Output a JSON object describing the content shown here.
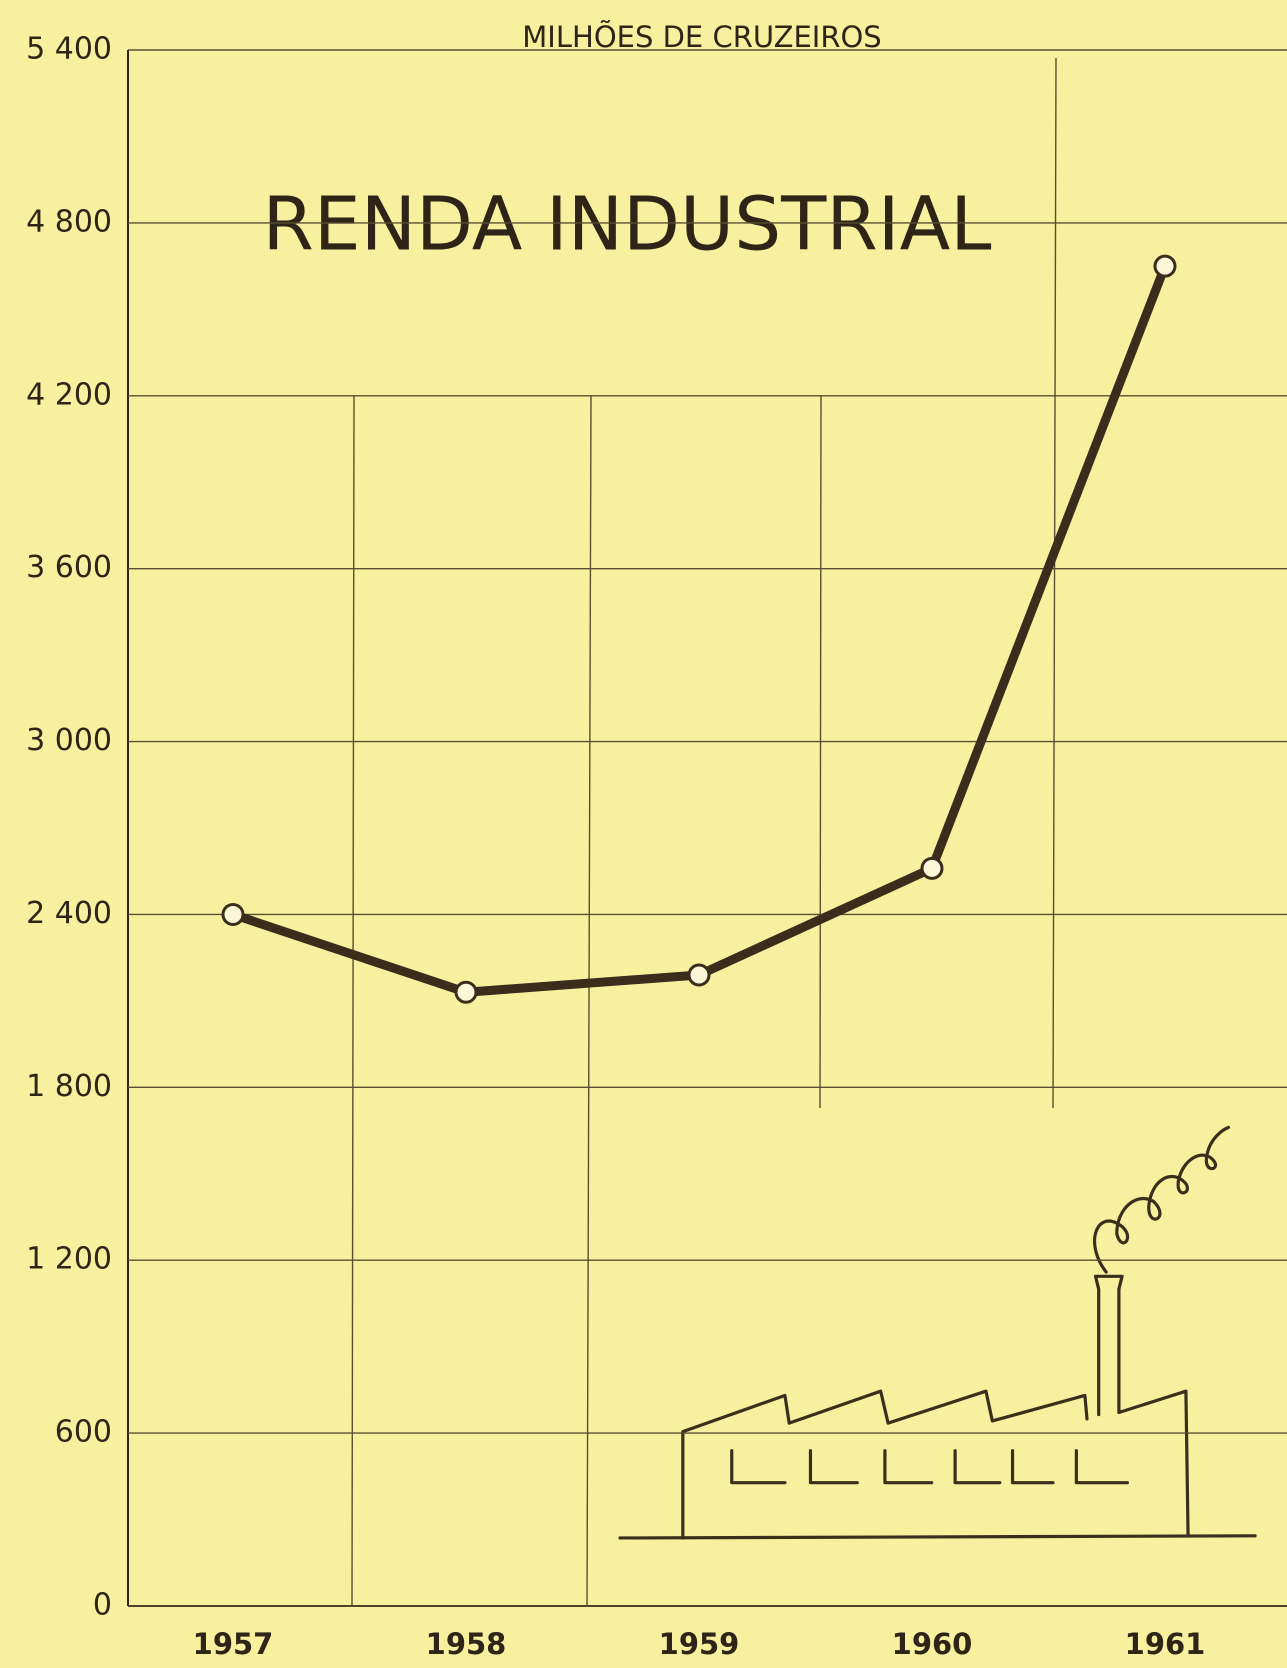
{
  "chart_data": {
    "type": "line",
    "title": "RENDA INDUSTRIAL",
    "y_label": "MILHÕES DE CRUZEIROS",
    "categories": [
      "1957",
      "1958",
      "1959",
      "1960",
      "1961"
    ],
    "series": [
      {
        "name": "Renda industrial",
        "color": "#3b2c1c",
        "values": [
          2400,
          2130,
          2190,
          2560,
          4650
        ]
      }
    ],
    "ylim": [
      0,
      5400
    ],
    "yticks": [
      0,
      600,
      {
        "value": 1200,
        "label": "1 200"
      },
      {
        "value": 1800,
        "label": "1 800"
      },
      {
        "value": 2400,
        "label": "2 400"
      },
      {
        "value": 3000,
        "label": "3 000"
      },
      {
        "value": 3600,
        "label": "3 600"
      },
      {
        "value": 4200,
        "label": "4 200"
      },
      {
        "value": 4800,
        "label": "4 800"
      },
      {
        "value": 5400,
        "label": "5 400"
      }
    ],
    "grid": true
  }
}
